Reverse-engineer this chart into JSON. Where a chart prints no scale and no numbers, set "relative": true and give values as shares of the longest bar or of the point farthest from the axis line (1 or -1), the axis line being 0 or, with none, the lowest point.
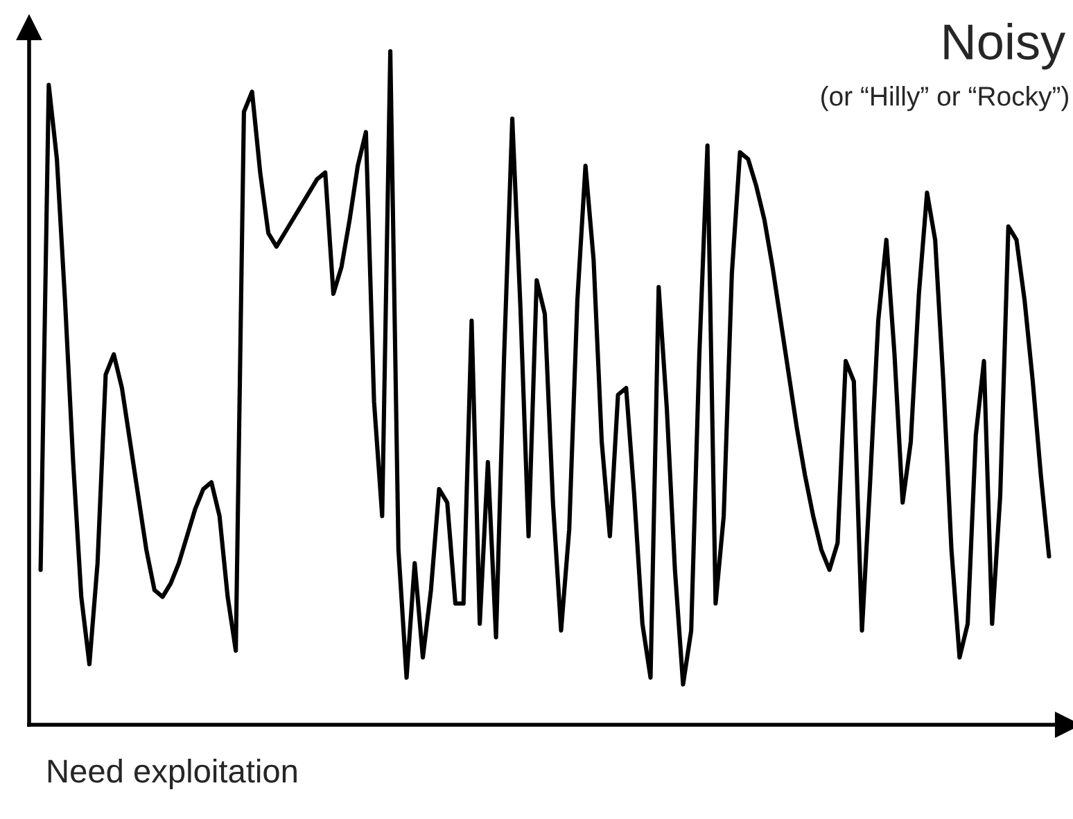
{
  "chart_data": {
    "type": "line",
    "title": "Noisy",
    "subtitle": "(or “Hilly” or “Rocky”)",
    "annotations": [
      "Need exploitation"
    ],
    "relative": true,
    "marker": "none",
    "line_style": "solid",
    "categories": [
      null,
      null,
      null,
      null,
      null,
      null,
      null,
      null,
      null,
      null,
      null,
      null,
      null,
      null,
      null,
      null,
      null,
      null,
      null,
      null,
      null,
      null,
      null,
      null,
      null,
      null,
      null,
      null,
      null,
      null,
      null,
      null,
      null,
      null,
      null,
      null,
      null,
      null,
      null,
      null,
      null,
      null,
      null,
      null,
      null,
      null,
      null,
      null,
      null,
      null,
      null,
      null,
      null,
      null,
      null,
      null,
      null,
      null,
      null,
      null,
      null,
      null,
      null,
      null,
      null,
      null,
      null,
      null,
      null,
      null,
      null,
      null,
      null,
      null,
      null,
      null,
      null,
      null,
      null,
      null,
      null,
      null,
      null,
      null,
      null,
      null,
      null,
      null,
      null,
      null,
      null,
      null,
      null,
      null,
      null,
      null,
      null,
      null,
      null,
      null,
      null,
      null,
      null,
      null,
      null,
      null,
      null,
      null,
      null,
      null,
      null,
      null,
      null,
      null,
      null,
      null,
      null,
      null,
      null,
      null,
      null,
      null,
      null,
      null,
      null
    ],
    "series": [
      {
        "color": "#000000",
        "values": [
          0.23,
          0.95,
          0.84,
          0.63,
          0.39,
          0.19,
          0.09,
          0.24,
          0.52,
          0.55,
          0.5,
          0.42,
          0.34,
          0.26,
          0.2,
          0.19,
          0.21,
          0.24,
          0.28,
          0.32,
          0.35,
          0.36,
          0.31,
          0.19,
          0.11,
          0.91,
          0.94,
          0.82,
          0.73,
          0.71,
          0.73,
          0.75,
          0.77,
          0.79,
          0.81,
          0.82,
          0.64,
          0.68,
          0.75,
          0.83,
          0.88,
          0.48,
          0.31,
          1.0,
          0.26,
          0.07,
          0.24,
          0.1,
          0.2,
          0.35,
          0.33,
          0.18,
          0.18,
          0.6,
          0.15,
          0.39,
          0.13,
          0.55,
          0.9,
          0.62,
          0.28,
          0.66,
          0.61,
          0.33,
          0.14,
          0.29,
          0.63,
          0.83,
          0.69,
          0.42,
          0.28,
          0.49,
          0.5,
          0.34,
          0.15,
          0.07,
          0.65,
          0.47,
          0.23,
          0.06,
          0.14,
          0.55,
          0.86,
          0.18,
          0.31,
          0.67,
          0.85,
          0.84,
          0.8,
          0.75,
          0.68,
          0.6,
          0.52,
          0.44,
          0.37,
          0.31,
          0.26,
          0.23,
          0.27,
          0.54,
          0.51,
          0.14,
          0.36,
          0.6,
          0.72,
          0.55,
          0.33,
          0.42,
          0.64,
          0.79,
          0.72,
          0.51,
          0.26,
          0.1,
          0.15,
          0.43,
          0.54,
          0.15,
          0.34,
          0.74,
          0.72,
          0.63,
          0.51,
          0.37,
          0.25
        ]
      }
    ]
  }
}
